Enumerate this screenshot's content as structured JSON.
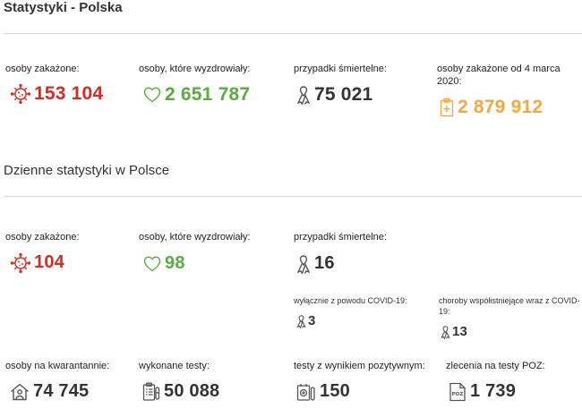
{
  "page": {
    "title": "Statystyki - Polska",
    "daily_title": "Dzienne statystyki w Polsce"
  },
  "totals": {
    "infected_label": "osoby zakażone:",
    "infected_value": "153 104",
    "recovered_label": "osoby, które wyzdrowiały:",
    "recovered_value": "2 651 787",
    "deaths_label": "przypadki śmiertelne:",
    "deaths_value": "75 021",
    "since_label": "osoby zakażone od 4 marca 2020:",
    "since_value": "2 879 912"
  },
  "daily": {
    "infected_label": "osoby zakażone:",
    "infected_value": "104",
    "recovered_label": "osoby, które wyzdrowiały:",
    "recovered_value": "98",
    "deaths_label": "przypadki śmiertelne:",
    "deaths_value": "16",
    "covid_only_label": "wyłącznie z powodu COVID-19:",
    "covid_only_value": "3",
    "comorbid_label": "choroby współistniejące wraz z COVID-19:",
    "comorbid_value": "13",
    "quarantine_label": "osoby na kwarantannie:",
    "quarantine_value": "74 745",
    "tests_label": "wykonane testy:",
    "tests_value": "50 088",
    "positive_label": "testy z wynikiem pozytywnym:",
    "positive_value": "150",
    "poz_label": "zlecenia na testy POZ:",
    "poz_value": "1 739",
    "poz_icon_text": "POZ"
  },
  "colors": {
    "red": "#d62c25",
    "green": "#5aac3c",
    "dark": "#333333",
    "orange": "#f3a940"
  },
  "icons": {
    "virus": "virus-icon",
    "heart": "heart-icon",
    "ribbon": "ribbon-icon",
    "clipboard": "clipboard-cross-icon",
    "house": "house-person-icon",
    "tests": "test-list-icon",
    "positive": "test-positive-icon",
    "poz": "poz-document-icon"
  }
}
